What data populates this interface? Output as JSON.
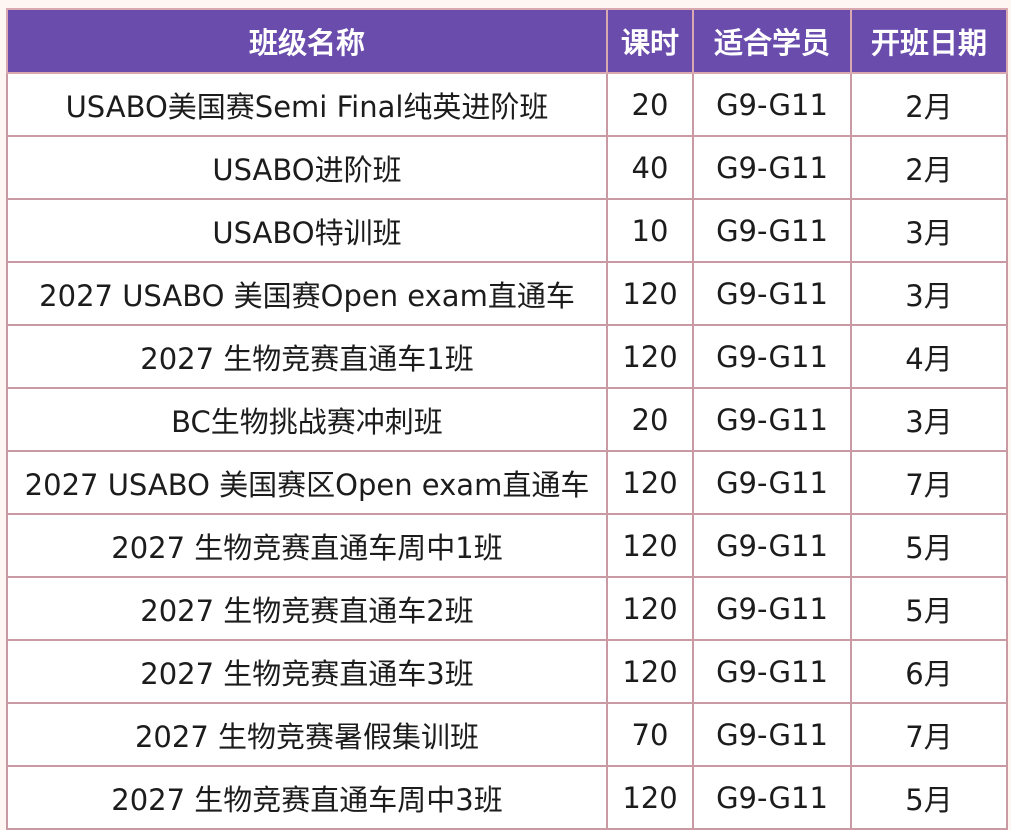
{
  "table": {
    "headers": {
      "name": "班级名称",
      "hours": "课时",
      "suitable": "适合学员",
      "start": "开班日期"
    },
    "rows": [
      {
        "name": "USABO美国赛Semi Final纯英进阶班",
        "hours": "20",
        "suitable": "G9-G11",
        "start": "2月"
      },
      {
        "name": "USABO进阶班",
        "hours": "40",
        "suitable": "G9-G11",
        "start": "2月"
      },
      {
        "name": "USABO特训班",
        "hours": "10",
        "suitable": "G9-G11",
        "start": "3月"
      },
      {
        "name": "2027 USABO 美国赛Open exam直通车",
        "hours": "120",
        "suitable": "G9-G11",
        "start": "3月"
      },
      {
        "name": "2027 生物竞赛直通车1班",
        "hours": "120",
        "suitable": "G9-G11",
        "start": "4月"
      },
      {
        "name": "BC生物挑战赛冲刺班",
        "hours": "20",
        "suitable": "G9-G11",
        "start": "3月"
      },
      {
        "name": "2027 USABO 美国赛区Open exam直通车",
        "hours": "120",
        "suitable": "G9-G11",
        "start": "7月"
      },
      {
        "name": "2027 生物竞赛直通车周中1班",
        "hours": "120",
        "suitable": "G9-G11",
        "start": "5月"
      },
      {
        "name": "2027 生物竞赛直通车2班",
        "hours": "120",
        "suitable": "G9-G11",
        "start": "5月"
      },
      {
        "name": "2027 生物竞赛直通车3班",
        "hours": "120",
        "suitable": "G9-G11",
        "start": "6月"
      },
      {
        "name": "2027 生物竞赛暑假集训班",
        "hours": "70",
        "suitable": "G9-G11",
        "start": "7月"
      },
      {
        "name": "2027 生物竞赛直通车周中3班",
        "hours": "120",
        "suitable": "G9-G11",
        "start": "5月"
      }
    ]
  },
  "colors": {
    "header_bg": "#6a4cad",
    "header_text": "#ffffff",
    "border": "#c99aa3",
    "cell_bg": "#ffffff"
  }
}
